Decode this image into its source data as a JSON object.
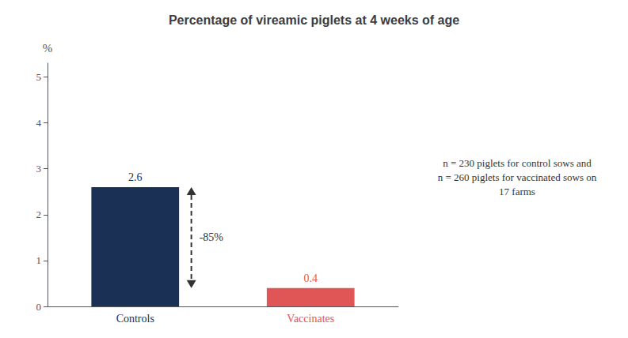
{
  "chart_data": {
    "type": "bar",
    "title": "Percentage of vireamic piglets at 4 weeks of age",
    "categories": [
      "Controls",
      "Vaccinates"
    ],
    "values": [
      2.6,
      0.4
    ],
    "colors": [
      "#1a3055",
      "#E05555"
    ],
    "ylabel": "%",
    "ylim": [
      0,
      5.3
    ],
    "yticks": [
      0,
      1,
      2,
      3,
      4,
      5
    ],
    "data_labels": true,
    "grid": false,
    "arrow_label": "-85%",
    "note_lines": [
      "n = 230 piglets for control sows and",
      "n = 260 piglets for vaccinated sows on",
      "17 farms"
    ]
  }
}
